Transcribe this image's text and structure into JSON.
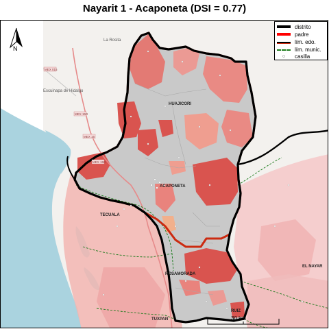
{
  "title": "Nayarit 1 - Acaponeta (DSI = 0.77)",
  "legend": {
    "items": [
      {
        "label": "distrito",
        "color": "#000000",
        "style": "thick"
      },
      {
        "label": "padre",
        "color": "#ff0000",
        "style": "thick"
      },
      {
        "label": "lím. edo.",
        "color": "#000000",
        "style": "edo"
      },
      {
        "label": "lím. munic.",
        "color": "#1a7a1a",
        "style": "munic"
      },
      {
        "label": "casilla",
        "color": "#ffffff",
        "style": "point"
      }
    ]
  },
  "north_arrow": {
    "label": "N"
  },
  "scale_bar": {
    "label": "30 km"
  },
  "municipalities": [
    "HUAJICORI",
    "ACAPONETA",
    "TECUALA",
    "ROSAMORADA",
    "EL NAYAR",
    "TUXPAN",
    "RUIZ"
  ],
  "places": [
    "La Rosita",
    "Escuinapa de Hidalgo"
  ],
  "road_shields": [
    "MEX 015",
    "MEX 15D",
    "MEX 15",
    "MEX 15D"
  ],
  "colors": {
    "district_border": "#000000",
    "parent_border": "#cc0000",
    "state_border": "#000000",
    "municipal_border": "#1a7a1a",
    "sea": "#aad3df",
    "land": "#f3f1ee",
    "choropleth_high": "#d9544f",
    "choropleth_low": "#f6cccc",
    "no_data_section": "#c8c8c8"
  }
}
